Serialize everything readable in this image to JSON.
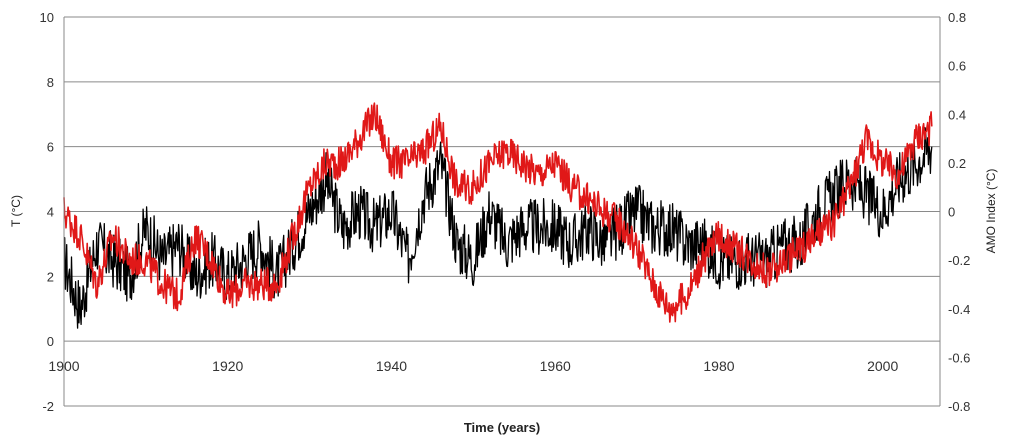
{
  "chart_data": {
    "type": "line",
    "xlabel": "Time (years)",
    "ylabel_left": "T (°C)",
    "ylabel_right": "AMO Index (°C)",
    "xlim": [
      1900,
      2007
    ],
    "ylim_left": [
      -2,
      10
    ],
    "ylim_right": [
      -0.8,
      0.8
    ],
    "x_ticks": [
      1900,
      1920,
      1940,
      1960,
      1980,
      2000
    ],
    "y_left_ticks": [
      -2,
      0,
      2,
      4,
      6,
      8,
      10
    ],
    "y_right_ticks": [
      -0.8,
      -0.6,
      -0.4,
      -0.2,
      0,
      0.2,
      0.4,
      0.6,
      0.8
    ],
    "grid": "horizontal",
    "series": [
      {
        "axis": "left",
        "color": "#000000",
        "x": [
          1900,
          1902,
          1904,
          1906,
          1908,
          1910,
          1912,
          1914,
          1916,
          1918,
          1920,
          1922,
          1924,
          1926,
          1928,
          1930,
          1932,
          1934,
          1936,
          1938,
          1940,
          1942,
          1944,
          1946,
          1948,
          1950,
          1952,
          1954,
          1956,
          1958,
          1960,
          1962,
          1964,
          1966,
          1968,
          1970,
          1972,
          1974,
          1976,
          1978,
          1980,
          1982,
          1984,
          1986,
          1988,
          1990,
          1992,
          1994,
          1996,
          1998,
          2000,
          2002,
          2004,
          2006
        ],
        "values": [
          2.5,
          1.0,
          3.0,
          2.5,
          2.0,
          3.5,
          2.5,
          3.0,
          2.0,
          2.5,
          2.0,
          2.5,
          3.0,
          2.0,
          3.0,
          4.0,
          5.0,
          3.5,
          4.0,
          3.5,
          4.0,
          2.5,
          4.5,
          5.5,
          3.0,
          2.5,
          4.0,
          3.0,
          3.5,
          3.5,
          3.5,
          3.0,
          3.5,
          3.0,
          3.5,
          4.0,
          3.5,
          3.5,
          3.0,
          3.0,
          2.5,
          2.5,
          2.5,
          2.5,
          3.0,
          3.0,
          4.0,
          4.5,
          5.0,
          4.5,
          4.0,
          5.0,
          5.5,
          6.0
        ]
      },
      {
        "axis": "right",
        "color": "#e01818",
        "x": [
          1900,
          1902,
          1904,
          1906,
          1908,
          1910,
          1912,
          1914,
          1916,
          1918,
          1920,
          1922,
          1924,
          1926,
          1928,
          1930,
          1932,
          1934,
          1936,
          1938,
          1940,
          1942,
          1944,
          1946,
          1948,
          1950,
          1952,
          1954,
          1956,
          1958,
          1960,
          1962,
          1964,
          1966,
          1968,
          1970,
          1972,
          1974,
          1976,
          1978,
          1980,
          1982,
          1984,
          1986,
          1988,
          1990,
          1992,
          1994,
          1996,
          1998,
          2000,
          2002,
          2004,
          2006
        ],
        "values": [
          0.0,
          -0.1,
          -0.3,
          -0.1,
          -0.2,
          -0.2,
          -0.3,
          -0.35,
          -0.1,
          -0.2,
          -0.35,
          -0.3,
          -0.3,
          -0.3,
          -0.1,
          0.1,
          0.2,
          0.2,
          0.3,
          0.4,
          0.2,
          0.2,
          0.25,
          0.35,
          0.1,
          0.1,
          0.2,
          0.25,
          0.2,
          0.15,
          0.2,
          0.1,
          0.05,
          0.0,
          -0.05,
          -0.15,
          -0.3,
          -0.4,
          -0.35,
          -0.2,
          -0.1,
          -0.15,
          -0.2,
          -0.25,
          -0.2,
          -0.15,
          -0.1,
          -0.05,
          0.1,
          0.3,
          0.2,
          0.15,
          0.3,
          0.35
        ]
      }
    ]
  }
}
